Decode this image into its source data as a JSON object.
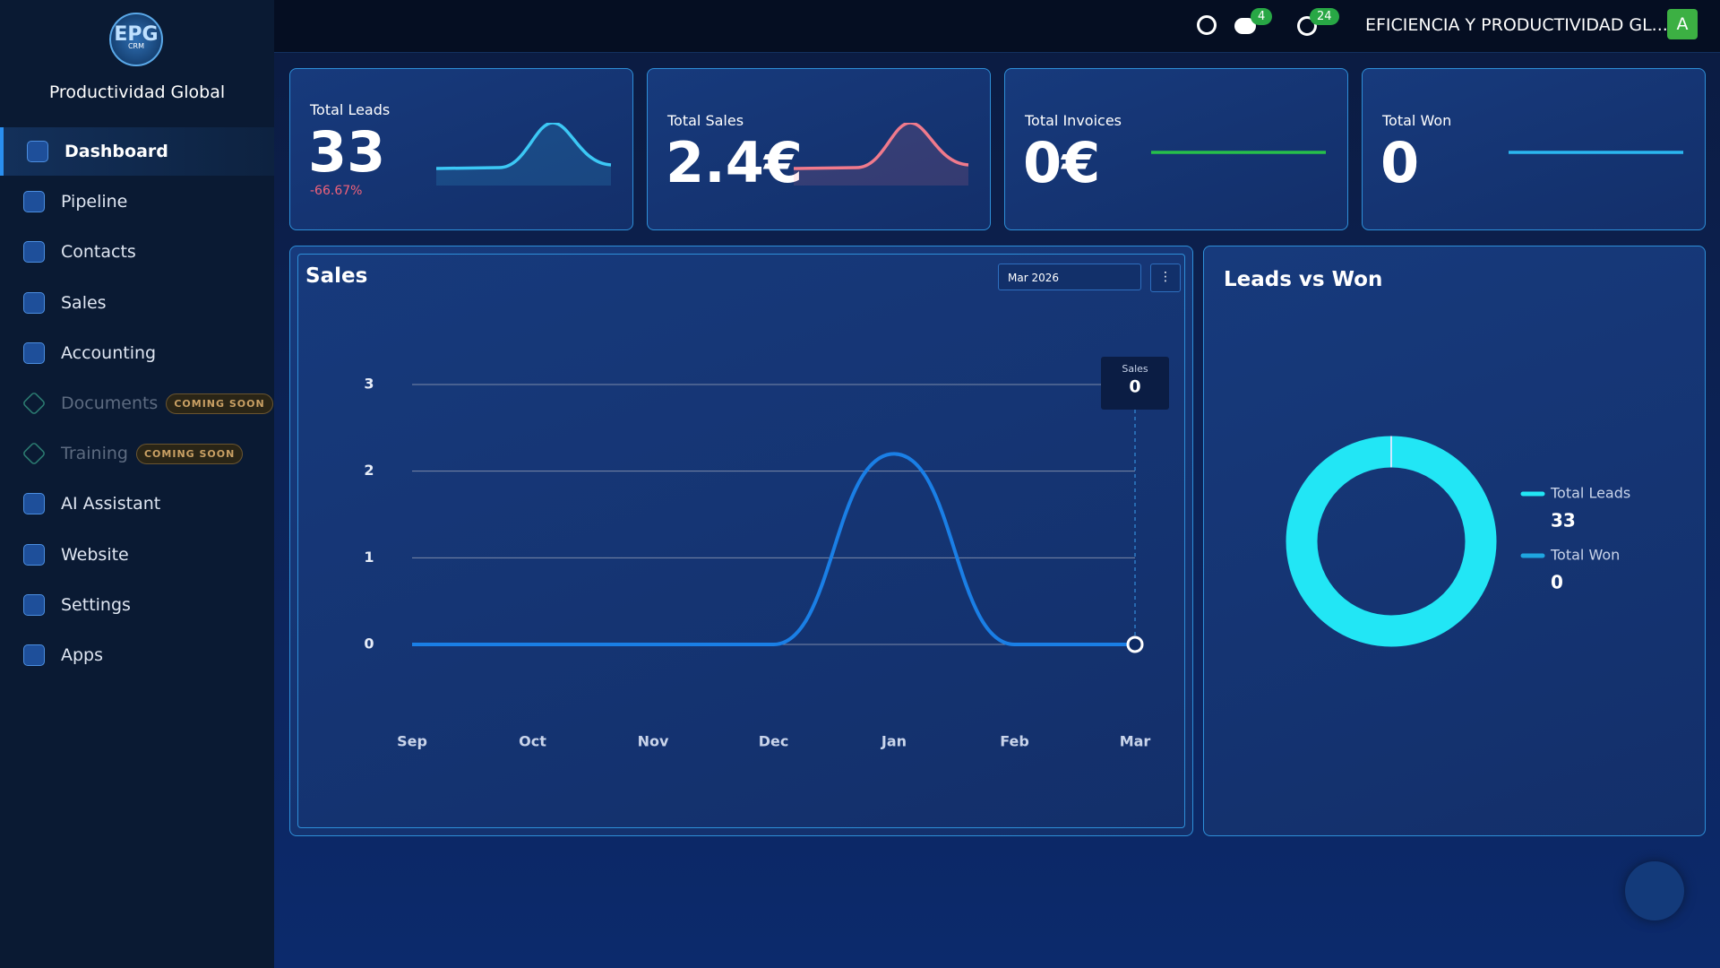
{
  "sidebar": {
    "logo": "EPG",
    "logo_sub": "CRM",
    "brand": "Productividad Global",
    "menu": [
      {
        "label": "Dashboard"
      },
      {
        "label": "Pipeline"
      },
      {
        "label": "Contacts"
      },
      {
        "label": "Sales"
      },
      {
        "label": "Accounting"
      },
      {
        "label": "Documents",
        "badge": "COMING SOON"
      },
      {
        "label": "Training",
        "badge": "COMING SOON"
      },
      {
        "label": "AI Assistant"
      },
      {
        "label": "Website"
      },
      {
        "label": "Settings"
      },
      {
        "label": "Apps"
      }
    ]
  },
  "topbar": {
    "messages_badge": 4,
    "activity_badge": 24,
    "company": "EFICIENCIA Y PRODUCTIVIDAD GL...",
    "avatar": "A"
  },
  "kpis": [
    {
      "title": "Total Leads",
      "value": "33",
      "change": "-66.67%"
    },
    {
      "title": "Total Sales",
      "value": "2.4€"
    },
    {
      "title": "Total Invoices",
      "value": "0€"
    },
    {
      "title": "Total Won",
      "value": "0"
    }
  ],
  "chart_data": [
    {
      "type": "line",
      "title": "Sales",
      "date_filter": "Mar 2026",
      "categories": [
        "Sep",
        "Oct",
        "Nov",
        "Dec",
        "Jan",
        "Feb",
        "Mar"
      ],
      "series": [
        {
          "name": "Sales",
          "color": "#1a7fe6",
          "values": [
            0,
            0,
            0,
            0,
            2.2,
            0,
            0
          ]
        }
      ],
      "ylim": [
        0,
        3
      ],
      "yticks": [
        0,
        1,
        2,
        3
      ],
      "grid": true
    },
    {
      "type": "donut",
      "title": "Leads vs Won",
      "categories": [
        "Total Leads",
        "Total Won"
      ],
      "values": [
        33,
        0
      ],
      "colors": [
        "#22e6f5",
        "#1fa6e0"
      ]
    }
  ]
}
